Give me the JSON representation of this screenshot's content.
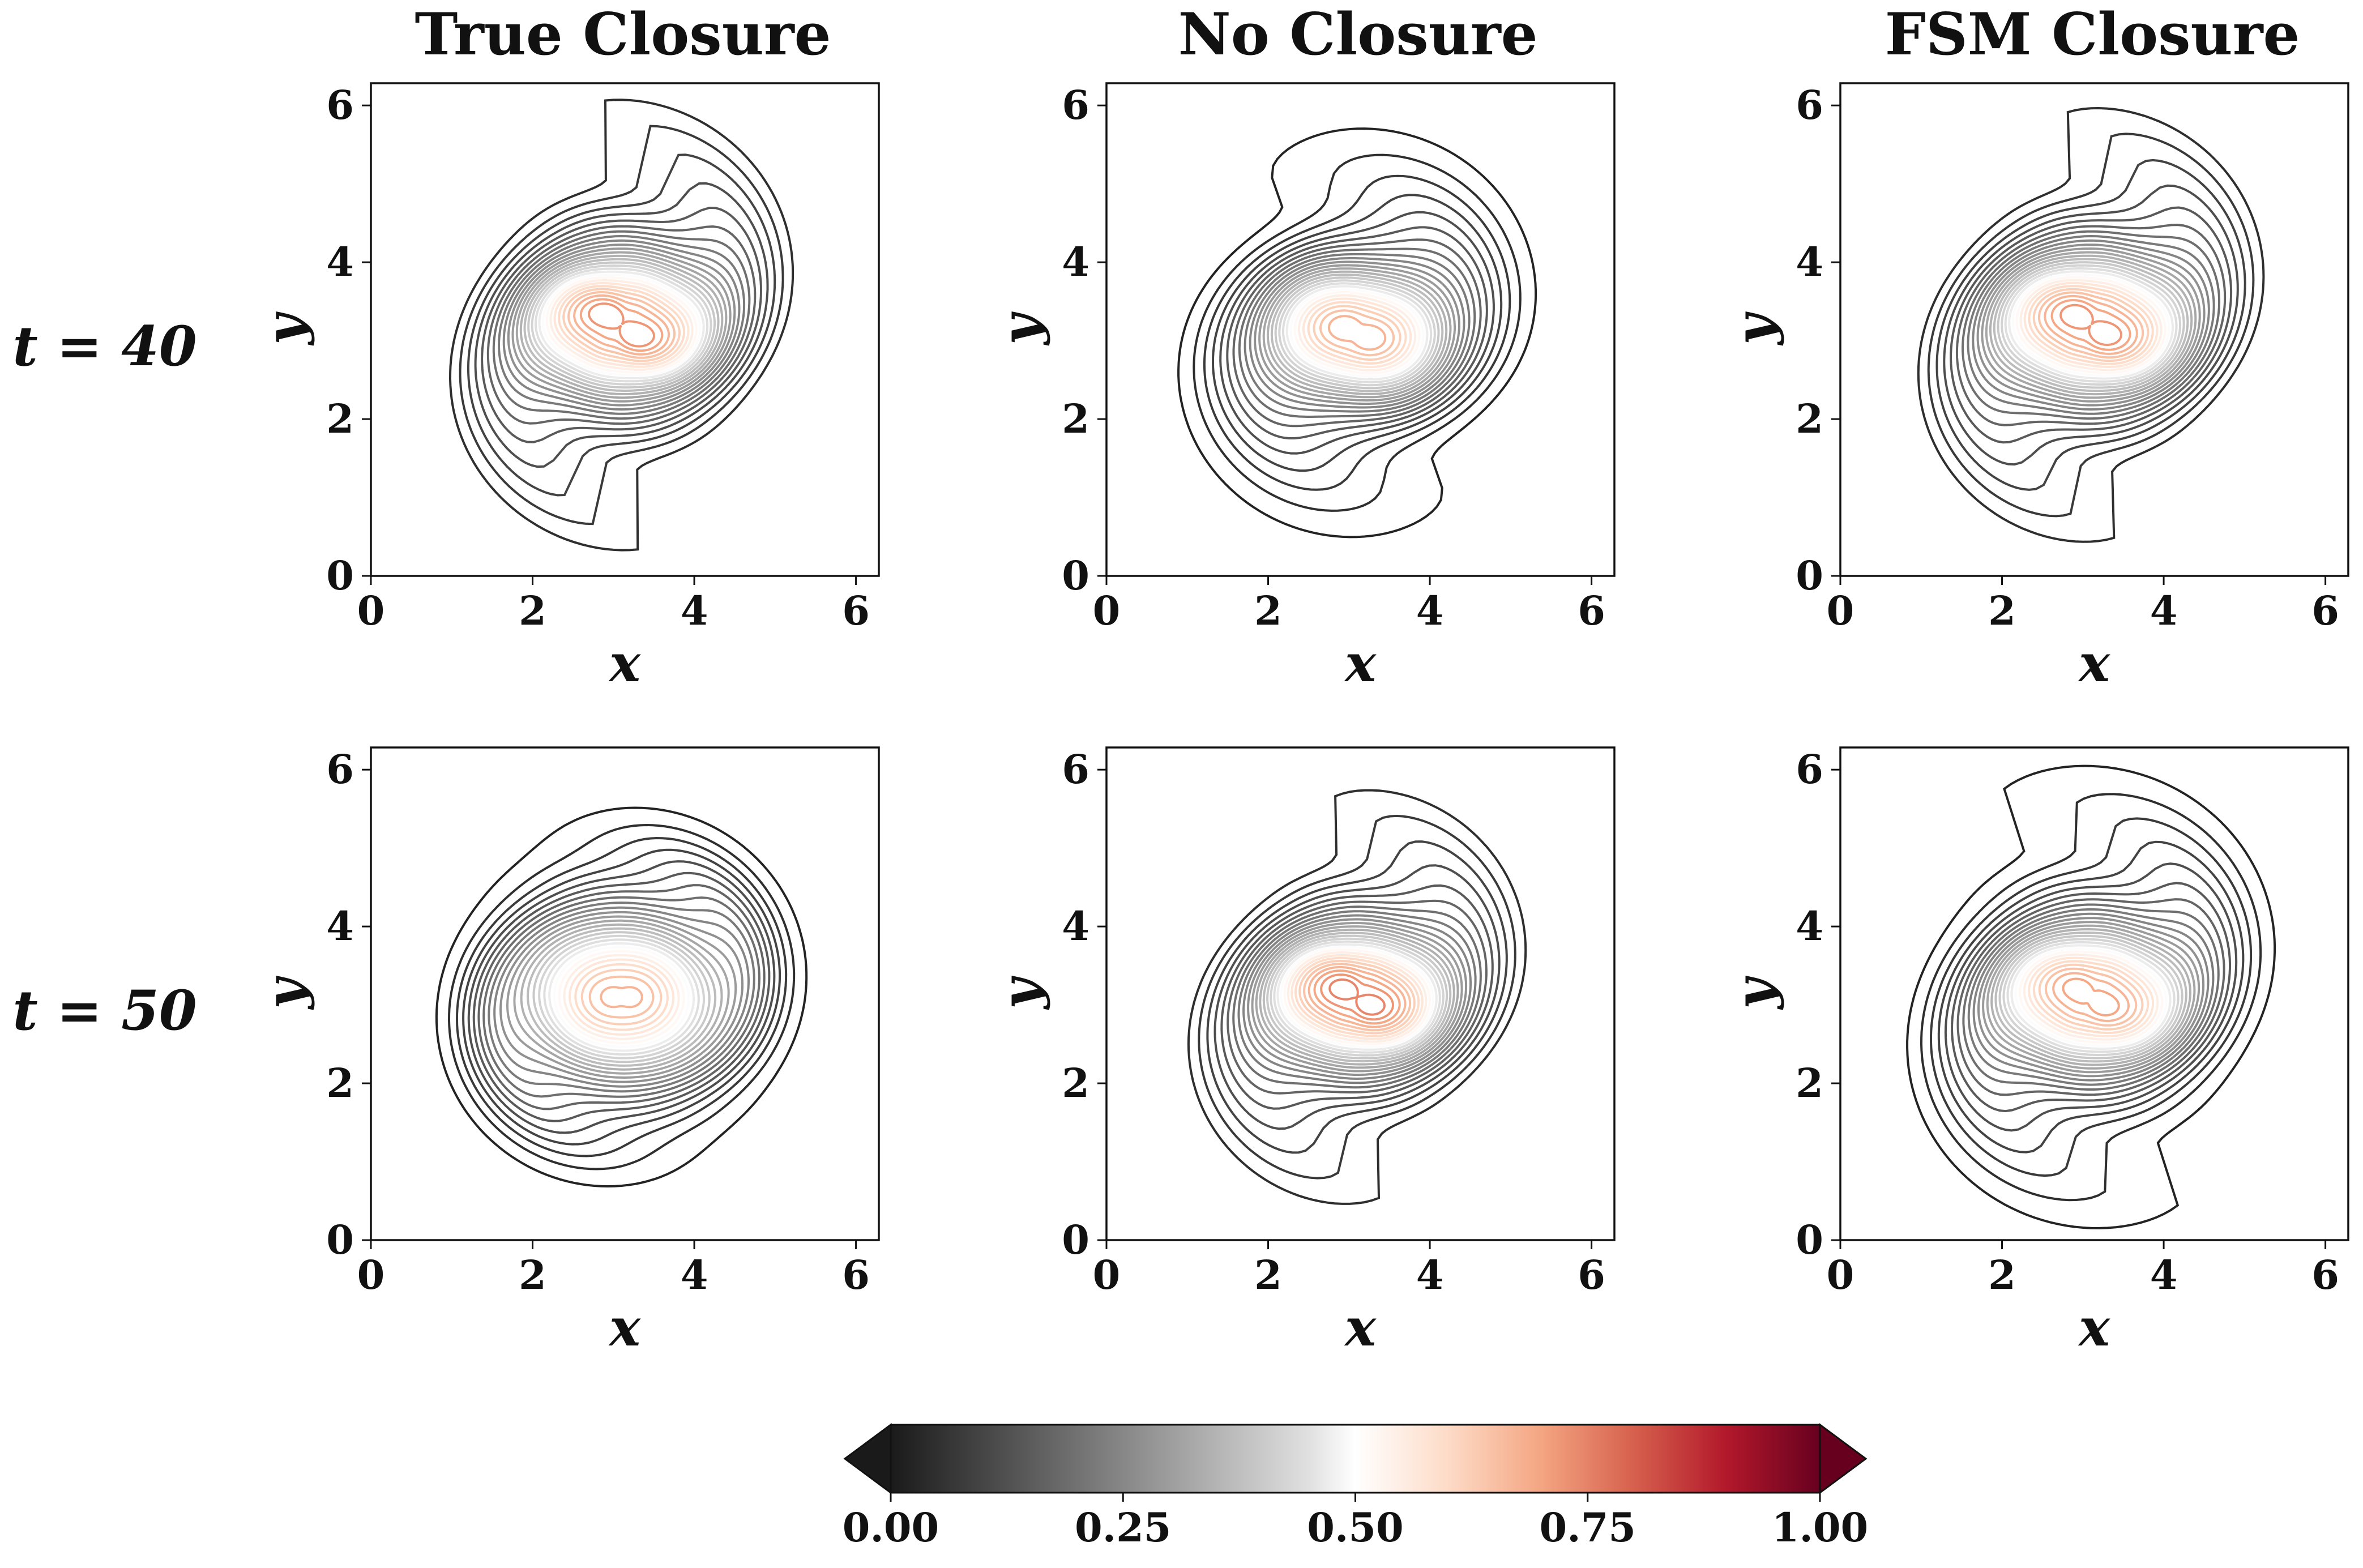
{
  "chart_data": {
    "type": "contour",
    "column_titles": [
      "True Closure",
      "No Closure",
      "FSM Closure"
    ],
    "row_labels": [
      "t = 40",
      "t = 50"
    ],
    "xlabel": "x",
    "ylabel": "y",
    "xlim": [
      0,
      6.283
    ],
    "ylim": [
      0,
      6.283
    ],
    "xticks": [
      "0",
      "2",
      "4",
      "6"
    ],
    "yticks": [
      "0",
      "2",
      "4",
      "6"
    ],
    "colorbar": {
      "cmap": "RdGy_r",
      "vmin": 0.0,
      "vmax": 1.0,
      "ticks": [
        "0.00",
        "0.25",
        "0.50",
        "0.75",
        "1.00"
      ],
      "extend": "both",
      "stops": [
        {
          "v": 0.0,
          "color": "#1a1a1a"
        },
        {
          "v": 0.25,
          "color": "#878787"
        },
        {
          "v": 0.45,
          "color": "#e0e0e0"
        },
        {
          "v": 0.5,
          "color": "#ffffff"
        },
        {
          "v": 0.6,
          "color": "#fddbc7"
        },
        {
          "v": 0.7,
          "color": "#f4a582"
        },
        {
          "v": 0.8,
          "color": "#d6604d"
        },
        {
          "v": 0.9,
          "color": "#b2182b"
        },
        {
          "v": 1.0,
          "color": "#67001f"
        }
      ]
    },
    "panels": [
      {
        "title": "True Closure",
        "row": "t = 40",
        "center": [
          3.1,
          3.2
        ],
        "core_radius": 1.1,
        "peak_value": 0.72,
        "arms": 2,
        "arm_length": 0.95,
        "arm_width": 0.28
      },
      {
        "title": "No Closure",
        "row": "t = 40",
        "center": [
          3.1,
          3.1
        ],
        "core_radius": 1.0,
        "peak_value": 0.68,
        "arms": 2,
        "arm_length": 0.55,
        "arm_width": 0.5
      },
      {
        "title": "FSM Closure",
        "row": "t = 40",
        "center": [
          3.1,
          3.2
        ],
        "core_radius": 1.1,
        "peak_value": 0.72,
        "arms": 2,
        "arm_length": 0.85,
        "arm_width": 0.32
      },
      {
        "title": "True Closure",
        "row": "t = 50",
        "center": [
          3.1,
          3.1
        ],
        "core_radius": 1.2,
        "peak_value": 0.68,
        "arms": 2,
        "arm_length": 0.2,
        "arm_width": 0.4
      },
      {
        "title": "No Closure",
        "row": "t = 50",
        "center": [
          3.1,
          3.1
        ],
        "core_radius": 1.05,
        "peak_value": 0.74,
        "arms": 2,
        "arm_length": 0.8,
        "arm_width": 0.35
      },
      {
        "title": "FSM Closure",
        "row": "t = 50",
        "center": [
          3.1,
          3.1
        ],
        "core_radius": 1.1,
        "peak_value": 0.7,
        "arms": 2,
        "arm_length": 0.7,
        "arm_width": 0.3
      }
    ]
  }
}
